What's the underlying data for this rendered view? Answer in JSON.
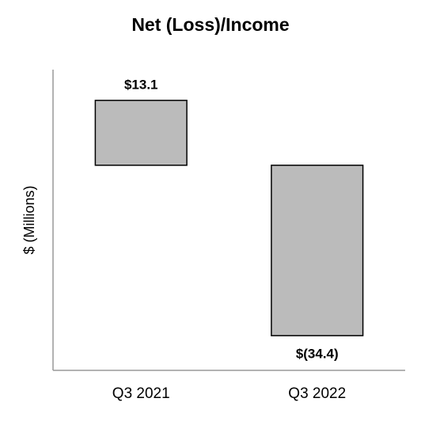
{
  "chart_data": {
    "type": "bar",
    "title": "Net (Loss)/Income",
    "ylabel": "$ (Millions)",
    "categories": [
      "Q3 2021",
      "Q3 2022"
    ],
    "values": [
      13.1,
      -34.4
    ],
    "value_labels": [
      "$13.1",
      "$(34.4)"
    ],
    "color": "#bbbbbb",
    "ylim": [
      -41.4,
      19.3
    ]
  }
}
